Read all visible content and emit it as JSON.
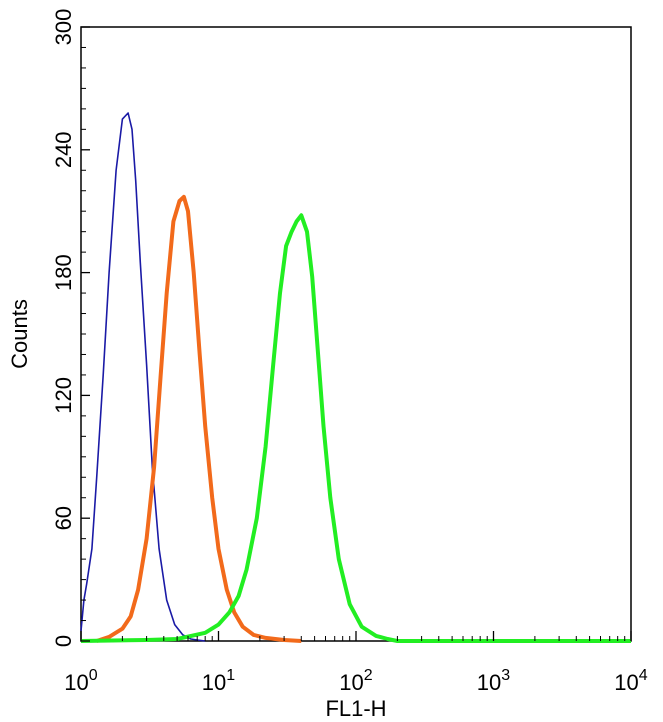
{
  "chart_data": {
    "type": "line",
    "xlabel": "FL1-H",
    "ylabel": "Counts",
    "xscale": "log",
    "xlim": [
      1,
      10000
    ],
    "ylim": [
      0,
      300
    ],
    "grid": false,
    "legend": "none",
    "x_ticks": [
      {
        "value": 1,
        "base": "10",
        "exp": "0"
      },
      {
        "value": 10,
        "base": "10",
        "exp": "1"
      },
      {
        "value": 100,
        "base": "10",
        "exp": "2"
      },
      {
        "value": 1000,
        "base": "10",
        "exp": "3"
      },
      {
        "value": 10000,
        "base": "10",
        "exp": "4"
      }
    ],
    "y_ticks": [
      {
        "value": 0,
        "label": "0"
      },
      {
        "value": 60,
        "label": "60"
      },
      {
        "value": 120,
        "label": "120"
      },
      {
        "value": 180,
        "label": "180"
      },
      {
        "value": 240,
        "label": "240"
      },
      {
        "value": 300,
        "label": "300"
      }
    ],
    "series": [
      {
        "color": "#1a1aa6",
        "x": [
          1.0,
          1.05,
          1.1,
          1.2,
          1.3,
          1.45,
          1.6,
          1.8,
          2.0,
          2.2,
          2.35,
          2.5,
          2.7,
          3.0,
          3.3,
          3.7,
          4.2,
          4.8,
          5.5,
          6.3,
          7.0,
          8.0
        ],
        "y": [
          5,
          20,
          28,
          45,
          80,
          130,
          180,
          230,
          255,
          258,
          250,
          225,
          185,
          135,
          85,
          45,
          20,
          8,
          3,
          1,
          0.5,
          0
        ]
      },
      {
        "color": "#f26a1b",
        "x": [
          1.3,
          1.6,
          2.0,
          2.3,
          2.6,
          3.0,
          3.4,
          3.8,
          4.2,
          4.7,
          5.2,
          5.6,
          6.0,
          6.6,
          7.3,
          8.0,
          9.0,
          10.0,
          11.5,
          13.0,
          15.0,
          18.0,
          22.0,
          30.0,
          40.0
        ],
        "y": [
          0,
          2,
          6,
          12,
          25,
          50,
          85,
          130,
          170,
          205,
          215,
          217,
          210,
          180,
          140,
          105,
          70,
          45,
          25,
          14,
          7,
          3,
          1.5,
          0.5,
          0
        ]
      },
      {
        "color": "#22ee22",
        "x": [
          1.0,
          3.0,
          5.0,
          8.0,
          10.0,
          12.0,
          14.0,
          16.0,
          19.0,
          22.0,
          25.0,
          28.0,
          31.0,
          34.0,
          37.0,
          40.0,
          44.0,
          48.0,
          53.0,
          58.0,
          65.0,
          75.0,
          90.0,
          110.0,
          140.0,
          170.0,
          200.0,
          10000.0
        ],
        "y": [
          0,
          0.5,
          1,
          4,
          8,
          14,
          22,
          35,
          60,
          95,
          135,
          170,
          193,
          200,
          205,
          208,
          200,
          178,
          140,
          105,
          70,
          40,
          18,
          7,
          2.5,
          1,
          0,
          0
        ]
      }
    ]
  }
}
